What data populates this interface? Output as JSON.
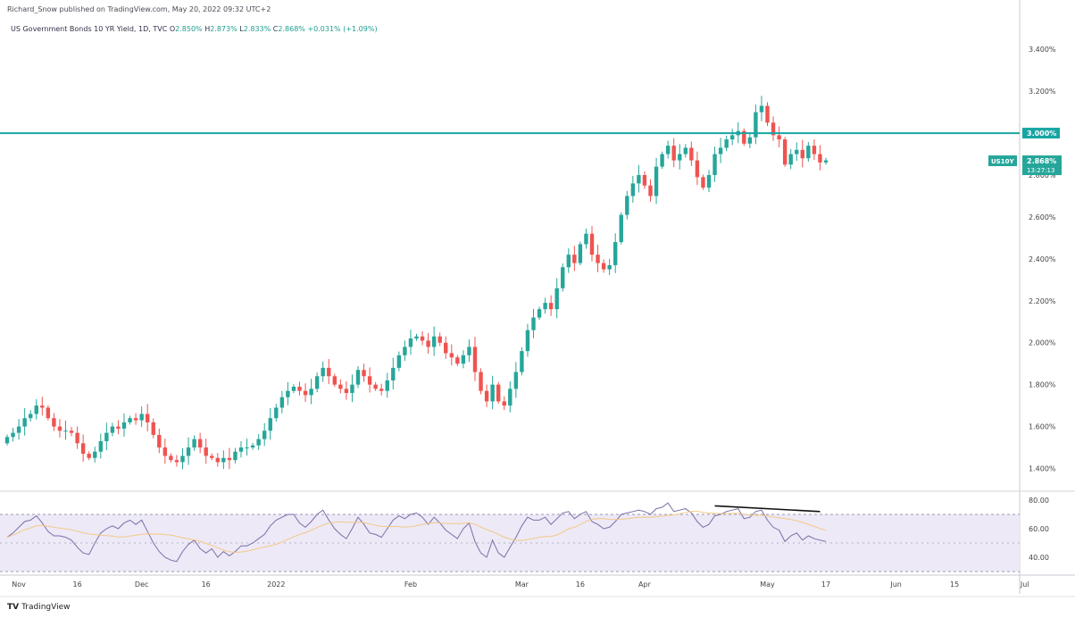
{
  "credit": "Richard_Snow published on TradingView.com, May 20, 2022 09:32 UTC+2",
  "legend": {
    "title": "US Government Bonds 10 YR Yield, 1D, TVC",
    "o_label": "O",
    "o": "2.850%",
    "h_label": "H",
    "h": "2.873%",
    "l_label": "L",
    "l": "2.833%",
    "c_label": "C",
    "c": "2.868%",
    "change": "+0.031% (+1.09%)"
  },
  "logo_text": "TradingView",
  "colors": {
    "up": "#26a69a",
    "down": "#ef5350",
    "level": "#17a5a3",
    "rsi": "#7b6fa6",
    "rsi_ma": "#f3c986",
    "rsi_band": "#ede9f7"
  },
  "chart_data": {
    "type": "candlestick",
    "title": "US Government Bonds 10 YR Yield, 1D, TVC",
    "ylim": [
      1.3,
      3.55
    ],
    "yticks": [
      1.4,
      1.6,
      1.8,
      2.0,
      2.2,
      2.4,
      2.6,
      2.8,
      3.2,
      3.4
    ],
    "ytick_labels": [
      "1.400%",
      "1.600%",
      "1.800%",
      "2.000%",
      "2.200%",
      "2.400%",
      "2.600%",
      "2.800%",
      "3.200%",
      "3.400%"
    ],
    "xticks": [
      "Nov",
      "16",
      "Dec",
      "16",
      "2022",
      "Feb",
      "Mar",
      "16",
      "Apr",
      "May",
      "17",
      "Jun",
      "15",
      "Jul"
    ],
    "xtick_positions": [
      2,
      12,
      23,
      34,
      46,
      69,
      88,
      98,
      109,
      130,
      140,
      152,
      162,
      174
    ],
    "horizontal_level": {
      "value": 3.0,
      "label": "3.000%"
    },
    "last_price": {
      "symbol": "US10Y",
      "value": 2.868,
      "label": "2.868%",
      "countdown": "13:27:13"
    },
    "candles_close": [
      1.55,
      1.57,
      1.6,
      1.64,
      1.66,
      1.7,
      1.69,
      1.64,
      1.6,
      1.58,
      1.58,
      1.57,
      1.52,
      1.47,
      1.45,
      1.48,
      1.53,
      1.57,
      1.6,
      1.59,
      1.62,
      1.64,
      1.63,
      1.66,
      1.62,
      1.56,
      1.5,
      1.46,
      1.44,
      1.43,
      1.46,
      1.5,
      1.54,
      1.5,
      1.46,
      1.45,
      1.43,
      1.45,
      1.44,
      1.48,
      1.5,
      1.5,
      1.51,
      1.54,
      1.58,
      1.64,
      1.69,
      1.74,
      1.77,
      1.79,
      1.77,
      1.75,
      1.78,
      1.84,
      1.88,
      1.84,
      1.8,
      1.78,
      1.76,
      1.8,
      1.87,
      1.84,
      1.8,
      1.78,
      1.77,
      1.82,
      1.88,
      1.94,
      1.98,
      2.02,
      2.03,
      2.01,
      1.98,
      2.03,
      2.0,
      1.95,
      1.93,
      1.9,
      1.94,
      1.98,
      1.86,
      1.77,
      1.72,
      1.8,
      1.72,
      1.7,
      1.78,
      1.86,
      1.96,
      2.06,
      2.12,
      2.16,
      2.19,
      2.16,
      2.26,
      2.36,
      2.42,
      2.38,
      2.47,
      2.52,
      2.42,
      2.38,
      2.35,
      2.37,
      2.48,
      2.61,
      2.7,
      2.76,
      2.8,
      2.75,
      2.7,
      2.84,
      2.9,
      2.94,
      2.87,
      2.9,
      2.93,
      2.87,
      2.79,
      2.74,
      2.8,
      2.9,
      2.93,
      2.97,
      2.99,
      3.01,
      2.95,
      2.98,
      3.1,
      3.13,
      3.05,
      2.99,
      2.97,
      2.85,
      2.9,
      2.92,
      2.88,
      2.94,
      2.9,
      2.86,
      2.87
    ],
    "rsi": {
      "levels": [
        80.0,
        60.0,
        40.0
      ],
      "band": [
        70,
        30
      ],
      "ylim": [
        30,
        85
      ],
      "divergence": {
        "from_index": 121,
        "to_index": 139,
        "from_value": 76,
        "to_value": 72
      },
      "values": [
        54,
        57,
        61,
        65,
        66,
        69,
        64,
        58,
        55,
        55,
        54,
        52,
        47,
        43,
        42,
        50,
        57,
        60,
        62,
        60,
        64,
        66,
        63,
        66,
        58,
        50,
        44,
        40,
        38,
        37,
        44,
        49,
        52,
        46,
        43,
        46,
        40,
        44,
        41,
        44,
        48,
        48,
        50,
        53,
        56,
        62,
        66,
        68,
        70,
        70,
        64,
        61,
        65,
        70,
        73,
        66,
        60,
        56,
        53,
        60,
        68,
        63,
        57,
        56,
        54,
        60,
        66,
        69,
        67,
        70,
        71,
        68,
        63,
        68,
        64,
        59,
        56,
        53,
        60,
        64,
        51,
        43,
        40,
        52,
        43,
        40,
        47,
        54,
        62,
        68,
        66,
        66,
        68,
        63,
        67,
        71,
        72,
        67,
        70,
        72,
        65,
        63,
        60,
        61,
        65,
        70,
        71,
        72,
        73,
        72,
        70,
        74,
        75,
        78,
        72,
        73,
        74,
        71,
        65,
        61,
        63,
        69,
        70,
        72,
        73,
        74,
        67,
        68,
        72,
        73,
        66,
        61,
        59,
        51,
        55,
        57,
        52,
        55,
        53,
        52,
        51
      ]
    }
  }
}
